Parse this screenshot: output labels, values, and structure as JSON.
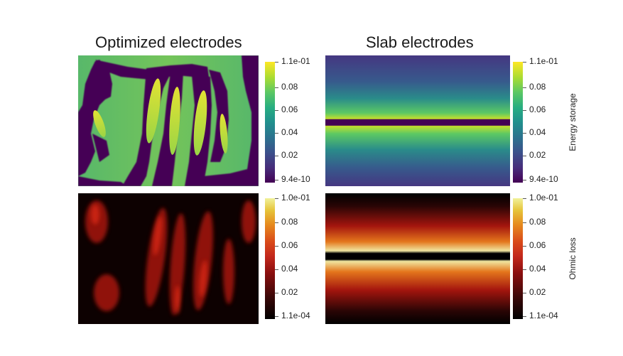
{
  "titles": {
    "optimized": "Optimized electrodes",
    "slab": "Slab electrodes"
  },
  "colorbars": {
    "energy": {
      "label": "Energy storage",
      "colormap": "viridis",
      "ticks": [
        "1.1e-01",
        "0.08",
        "0.06",
        "0.04",
        "0.02",
        "9.4e-10"
      ]
    },
    "ohmic": {
      "label": "Ohmic loss",
      "colormap": "black-body",
      "ticks": [
        "1.0e-01",
        "0.08",
        "0.06",
        "0.04",
        "0.02",
        "1.1e-04"
      ]
    }
  },
  "colors": {
    "electrode": "#440154",
    "field_mid": "#5fba6a",
    "field_high": "#d6dd37",
    "ohmic_low": "#0a0000",
    "ohmic_mid": "#b01e12",
    "ohmic_high": "#f4f0a2"
  }
}
